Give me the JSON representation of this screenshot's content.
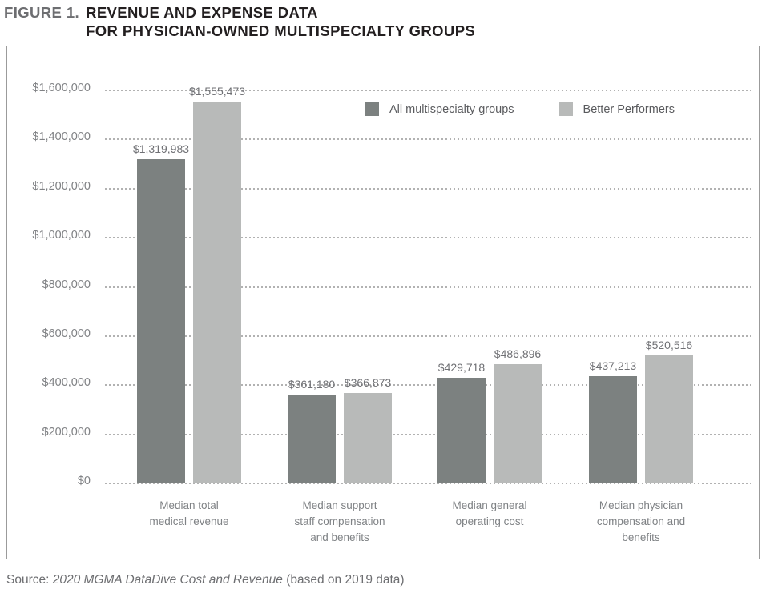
{
  "title": {
    "figure_label": "FIGURE 1.",
    "line1": "REVENUE AND EXPENSE DATA",
    "line2": "FOR PHYSICIAN-OWNED MULTISPECIALTY GROUPS"
  },
  "source": {
    "prefix": "Source: ",
    "italic_title": "2020 MGMA DataDive Cost and Revenue",
    "suffix": " (based on 2019 data)"
  },
  "colors": {
    "series_dark": "#7c8180",
    "series_light": "#b8bab9",
    "grid": "#b2b2b2",
    "axis_text": "#808285",
    "title_black": "#231f20",
    "title_gray": "#6d6e71",
    "frame_border": "#9b9b9b"
  },
  "chart_data": {
    "type": "bar",
    "title": "FIGURE 1. REVENUE AND EXPENSE DATA FOR PHYSICIAN-OWNED MULTISPECIALTY GROUPS",
    "categories": [
      "Median total medical revenue",
      "Median support staff compensation and benefits",
      "Median general operating cost",
      "Median physician compensation and benefits"
    ],
    "category_lines": [
      [
        "Median total",
        "medical revenue"
      ],
      [
        "Median support",
        "staff compensation",
        "and benefits"
      ],
      [
        "Median general",
        "operating cost"
      ],
      [
        "Median physician",
        "compensation and",
        "benefits"
      ]
    ],
    "series": [
      {
        "name": "All multispecialty groups",
        "color": "#7c8180",
        "values": [
          1319983,
          361180,
          429718,
          437213
        ],
        "labels": [
          "$1,319,983",
          "$361,180",
          "$429,718",
          "$437,213"
        ]
      },
      {
        "name": "Better Performers",
        "color": "#b8bab9",
        "values": [
          1555473,
          366873,
          486896,
          520516
        ],
        "labels": [
          "$1,555,473",
          "$366,873",
          "$486,896",
          "$520,516"
        ]
      }
    ],
    "xlabel": "",
    "ylabel": "",
    "ylim": [
      0,
      1600000
    ],
    "ytick_step": 200000,
    "ytick_labels": [
      "$0",
      "$200,000",
      "$400,000",
      "$600,000",
      "$800,000",
      "$1,000,000",
      "$1,200,000",
      "$1,400,000",
      "$1,600,000"
    ],
    "grid": "horizontal-dotted",
    "legend_position": "top-inside-right"
  }
}
